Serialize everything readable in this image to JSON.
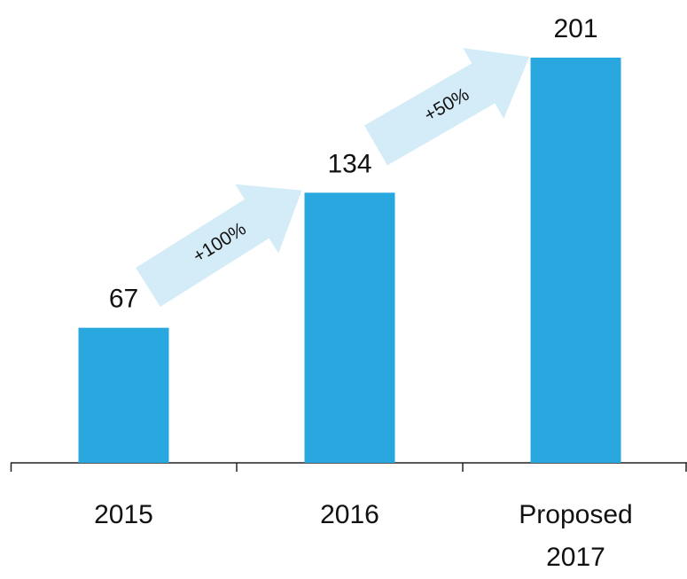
{
  "chart_data": {
    "type": "bar",
    "categories": [
      "2015",
      "2016",
      "Proposed 2017"
    ],
    "values": [
      67,
      134,
      201
    ],
    "color": "#29a8e0",
    "annotations": [
      "+100%",
      "+50%"
    ]
  }
}
